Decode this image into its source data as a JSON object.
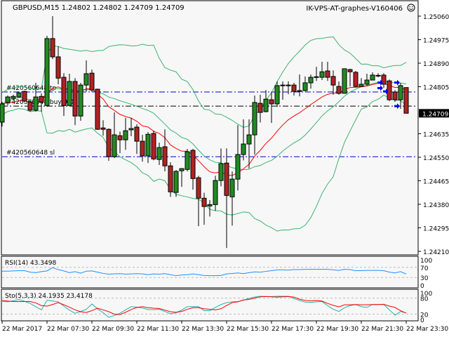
{
  "header": {
    "symbol_line": "GBPUSD,M15  1.24802 1.24802 1.24709 1.24709",
    "expert_label": "IK-VPS-AT-graphes-V160406",
    "expert_icon": "smiley-icon"
  },
  "colors": {
    "background": "#f7f7f7",
    "bull_candle": "#228b22",
    "bear_candle": "#b22222",
    "bollinger": "#3cb371",
    "moving_average": "#ff0000",
    "rsi_line": "#1e90ff",
    "stoch_main": "#20b2aa",
    "stoch_signal": "#ff0000",
    "order_line": "#0000cd",
    "trade_marker": "#0000ff"
  },
  "price_axis": {
    "max": 1.2506,
    "min": 1.2421,
    "ticks": [
      "1.25060",
      "1.24975",
      "1.24890",
      "1.24805",
      "1.24635",
      "1.24550",
      "1.24465",
      "1.24380",
      "1.24295",
      "1.24210"
    ],
    "current_price": "1.24709"
  },
  "order_lines": [
    {
      "label": "#420560648 tp",
      "price": 1.24786,
      "style": "blue-dashdot"
    },
    {
      "label": "#420560648 buy 0.01",
      "price": 1.24735,
      "style": "black-dashdot"
    },
    {
      "label": "#420560648 sl",
      "price": 1.24552,
      "style": "blue-dashdot"
    }
  ],
  "candles": [
    [
      1.24677,
      1.2475,
      1.24661,
      1.24743
    ],
    [
      1.24748,
      1.24773,
      1.24737,
      1.24768
    ],
    [
      1.24763,
      1.24776,
      1.24758,
      1.2477
    ],
    [
      1.24768,
      1.24788,
      1.24765,
      1.24783
    ],
    [
      1.24788,
      1.24791,
      1.24748,
      1.24753
    ],
    [
      1.2475,
      1.24755,
      1.24715,
      1.2472
    ],
    [
      1.2472,
      1.24819,
      1.24715,
      1.24768
    ],
    [
      1.2477,
      1.24781,
      1.24715,
      1.2475
    ],
    [
      1.24737,
      1.24989,
      1.24732,
      1.24979
    ],
    [
      1.24979,
      1.2506,
      1.24905,
      1.24913
    ],
    [
      1.24913,
      1.24951,
      1.24814,
      1.24836
    ],
    [
      1.24839,
      1.24854,
      1.24699,
      1.24737
    ],
    [
      1.24737,
      1.24852,
      1.24735,
      1.24824
    ],
    [
      1.24824,
      1.24836,
      1.24666,
      1.24699
    ],
    [
      1.24699,
      1.24819,
      1.24682,
      1.24811
    ],
    [
      1.24811,
      1.249,
      1.24788,
      1.24852
    ],
    [
      1.24854,
      1.24867,
      1.24786,
      1.24793
    ],
    [
      1.24796,
      1.24798,
      1.24649,
      1.24651
    ],
    [
      1.24656,
      1.24684,
      1.24628,
      1.24651
    ],
    [
      1.24651,
      1.24654,
      1.24537,
      1.24552
    ],
    [
      1.24552,
      1.24712,
      1.24547,
      1.24631
    ],
    [
      1.24628,
      1.24643,
      1.24565,
      1.24613
    ],
    [
      1.24613,
      1.24692,
      1.24577,
      1.24646
    ],
    [
      1.24649,
      1.24692,
      1.24626,
      1.24654
    ],
    [
      1.24659,
      1.24669,
      1.24562,
      1.24608
    ],
    [
      1.24608,
      1.24631,
      1.24534,
      1.24555
    ],
    [
      1.24555,
      1.24641,
      1.24529,
      1.24633
    ],
    [
      1.24636,
      1.24646,
      1.24539,
      1.24544
    ],
    [
      1.24542,
      1.24603,
      1.24522,
      1.24585
    ],
    [
      1.24588,
      1.24651,
      1.24499,
      1.24519
    ],
    [
      1.24519,
      1.24532,
      1.24407,
      1.24425
    ],
    [
      1.24423,
      1.24504,
      1.24407,
      1.24499
    ],
    [
      1.24501,
      1.24511,
      1.24443,
      1.24509
    ],
    [
      1.24506,
      1.2458,
      1.24499,
      1.2457
    ],
    [
      1.24575,
      1.2458,
      1.24433,
      1.24473
    ],
    [
      1.24476,
      1.24483,
      1.24301,
      1.24402
    ],
    [
      1.24402,
      1.24422,
      1.24306,
      1.24372
    ],
    [
      1.24374,
      1.24395,
      1.24336,
      1.24379
    ],
    [
      1.24379,
      1.24483,
      1.24356,
      1.24466
    ],
    [
      1.24466,
      1.24582,
      1.24445,
      1.24527
    ],
    [
      1.24529,
      1.24582,
      1.24222,
      1.24412
    ],
    [
      1.24407,
      1.24499,
      1.24303,
      1.24471
    ],
    [
      1.24471,
      1.24666,
      1.2443,
      1.2456
    ],
    [
      1.2456,
      1.24687,
      1.24539,
      1.24598
    ],
    [
      1.24598,
      1.24687,
      1.24509,
      1.24631
    ],
    [
      1.24631,
      1.24773,
      1.2456,
      1.24748
    ],
    [
      1.24745,
      1.24776,
      1.24676,
      1.24712
    ],
    [
      1.24715,
      1.24793,
      1.24712,
      1.2476
    ],
    [
      1.24758,
      1.24788,
      1.24674,
      1.24743
    ],
    [
      1.24743,
      1.24824,
      1.24732,
      1.24809
    ],
    [
      1.24809,
      1.24824,
      1.24758,
      1.24811
    ],
    [
      1.24811,
      1.24824,
      1.24778,
      1.24809
    ],
    [
      1.24811,
      1.24819,
      1.24773,
      1.24788
    ],
    [
      1.24791,
      1.24849,
      1.2477,
      1.24788
    ],
    [
      1.24791,
      1.24842,
      1.24788,
      1.24819
    ],
    [
      1.24819,
      1.24849,
      1.24798,
      1.24839
    ],
    [
      1.24839,
      1.24877,
      1.24826,
      1.24841
    ],
    [
      1.24839,
      1.24895,
      1.24829,
      1.24859
    ],
    [
      1.24862,
      1.24895,
      1.24826,
      1.24839
    ],
    [
      1.24842,
      1.24864,
      1.24776,
      1.24811
    ],
    [
      1.24806,
      1.24824,
      1.24776,
      1.24781
    ],
    [
      1.24781,
      1.2487,
      1.24781,
      1.2487
    ],
    [
      1.24867,
      1.2487,
      1.24806,
      1.24859
    ],
    [
      1.24857,
      1.24862,
      1.24803,
      1.24806
    ],
    [
      1.24806,
      1.24836,
      1.24806,
      1.24814
    ],
    [
      1.24814,
      1.24852,
      1.24809,
      1.24829
    ],
    [
      1.24829,
      1.24857,
      1.24829,
      1.24847
    ],
    [
      1.24844,
      1.24854,
      1.24839,
      1.24846
    ],
    [
      1.24847,
      1.24854,
      1.24801,
      1.24814
    ],
    [
      1.24826,
      1.24831,
      1.24753,
      1.24758
    ],
    [
      1.24786,
      1.24793,
      1.2475,
      1.24758
    ],
    [
      1.24758,
      1.24819,
      1.24725,
      1.24809
    ],
    [
      1.24802,
      1.24802,
      1.24709,
      1.24709
    ]
  ],
  "trade_markers": [
    {
      "candle": 68,
      "price": 1.2482
    },
    {
      "candle": 68,
      "price": 1.248
    },
    {
      "candle": 69,
      "price": 1.24788
    },
    {
      "candle": 71,
      "price": 1.2482
    },
    {
      "candle": 71,
      "price": 1.24735
    }
  ],
  "rsi": {
    "label": "RSI(14) 43.3498",
    "levels": [
      "100",
      "70",
      "30",
      "0"
    ],
    "values": [
      55,
      55,
      56,
      57,
      57,
      51,
      49,
      53,
      56,
      69,
      61,
      56,
      49,
      53,
      47,
      55,
      56,
      51,
      46,
      43,
      44,
      45,
      43,
      44,
      45,
      44,
      41,
      44,
      43,
      45,
      41,
      37,
      40,
      41,
      44,
      41,
      38,
      37,
      37,
      38,
      44,
      46,
      48,
      45,
      49,
      52,
      51,
      54,
      57,
      60,
      60,
      59,
      61,
      61,
      62,
      62,
      62,
      62,
      62,
      60,
      58,
      62,
      61,
      57,
      57,
      58,
      58,
      58,
      57,
      51,
      48,
      53,
      43.35
    ]
  },
  "stochastic": {
    "label": "Sto(5,3,3) 24.1935 23.4178",
    "levels": [
      "100",
      "80",
      "20",
      "0"
    ],
    "main": [
      68,
      66,
      70,
      75,
      68,
      60,
      48,
      36,
      72,
      69,
      66,
      50,
      35,
      23,
      30,
      38,
      58,
      40,
      25,
      8,
      15,
      23,
      36,
      48,
      46,
      43,
      37,
      37,
      38,
      30,
      21,
      25,
      35,
      48,
      48,
      48,
      33,
      33,
      45,
      56,
      63,
      66,
      67,
      72,
      79,
      84,
      87,
      86,
      86,
      87,
      87,
      87,
      79,
      71,
      65,
      64,
      66,
      67,
      52,
      38,
      30,
      44,
      52,
      56,
      48,
      45,
      56,
      56,
      56,
      36,
      16,
      30,
      24.19
    ],
    "signal": [
      71,
      69,
      67,
      67,
      67,
      67,
      62,
      52,
      50,
      56,
      63,
      55,
      46,
      36,
      29,
      26,
      33,
      42,
      36,
      29,
      20,
      18,
      27,
      37,
      45,
      48,
      44,
      42,
      41,
      35,
      29,
      27,
      30,
      38,
      44,
      44,
      40,
      38,
      36,
      40,
      52,
      63,
      66,
      73,
      75,
      80,
      85,
      86,
      85,
      84,
      85,
      86,
      84,
      76,
      71,
      70,
      71,
      69,
      60,
      53,
      47,
      55,
      55,
      56,
      55,
      55,
      56,
      56,
      57,
      50,
      45,
      33,
      23.42
    ]
  },
  "time_axis": [
    {
      "candle": 0,
      "label": "22 Mar 2017"
    },
    {
      "candle": 8,
      "label": "22 Mar 07:30"
    },
    {
      "candle": 16,
      "label": "22 Mar 09:30"
    },
    {
      "candle": 24,
      "label": "22 Mar 11:30"
    },
    {
      "candle": 32,
      "label": "22 Mar 13:30"
    },
    {
      "candle": 40,
      "label": "22 Mar 15:30"
    },
    {
      "candle": 48,
      "label": "22 Mar 17:30"
    },
    {
      "candle": 56,
      "label": "22 Mar 19:30"
    },
    {
      "candle": 64,
      "label": "22 Mar 21:30"
    },
    {
      "candle": 72,
      "label": "22 Mar 23:30"
    }
  ]
}
